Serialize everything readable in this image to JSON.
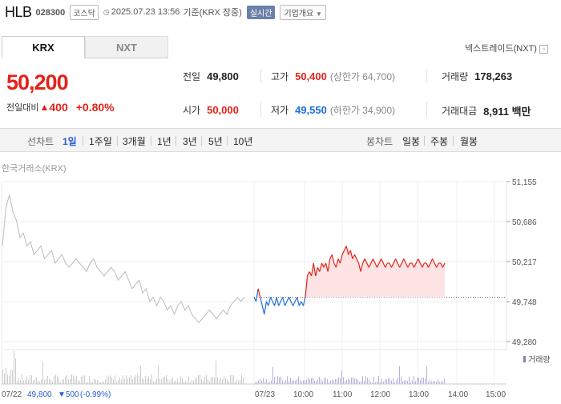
{
  "header": {
    "name": "HLB",
    "code": "028300",
    "market": "코스닥",
    "clock_icon": "clock-icon",
    "datetime": "2025.07.23 13:56",
    "basis": "기준(KRX 장중)",
    "realtime": "실시간",
    "company_overview": "기업개요"
  },
  "tabs": [
    {
      "label": "KRX",
      "active": true
    },
    {
      "label": "NXT",
      "active": false
    }
  ],
  "nextrade_link": "넥스트레이드(NXT)",
  "quote": {
    "price": "50,200",
    "change_label": "전일대비",
    "change_amount": "400",
    "change_percent": "+0.80%",
    "prev_close_label": "전일",
    "prev_close": "49,800",
    "high_label": "고가",
    "high": "50,400",
    "upper_limit": "(상한가 64,700)",
    "volume_label": "거래량",
    "volume": "178,263",
    "open_label": "시가",
    "open": "50,000",
    "low_label": "저가",
    "low": "49,550",
    "lower_limit": "(하한가 34,900)",
    "turnover_label": "거래대금",
    "turnover": "8,911 백만"
  },
  "toolbar": {
    "line_label": "선차트",
    "periods": [
      "1일",
      "1주일",
      "3개월",
      "1년",
      "3년",
      "5년",
      "10년"
    ],
    "candle_label": "봉차트",
    "candles": [
      "일봉",
      "주봉",
      "월봉"
    ]
  },
  "chart_source": "한국거래소(KRX)",
  "colors": {
    "up": "#e2231a",
    "down": "#1e6fd9",
    "prev": "#bbbbbb",
    "fill": "#fde3e3"
  },
  "chart_data": {
    "type": "line",
    "yticks": [
      "51,155",
      "50,686",
      "50,217",
      "49,748",
      "49,280"
    ],
    "ylim": [
      49280,
      51155
    ],
    "xticks": [
      "07/22",
      "07/23",
      "10:00",
      "11:00",
      "12:00",
      "13:00",
      "14:00",
      "15:00"
    ],
    "base_price": 49800,
    "volume_legend": "거래량",
    "footer": {
      "date": "07/22",
      "close": "49,800",
      "change": "500",
      "change_percent": "(-0.99%)"
    },
    "prev_day_series": [
      50400,
      50850,
      51000,
      50800,
      50700,
      50500,
      50550,
      50400,
      50450,
      50300,
      50350,
      50400,
      50250,
      50300,
      50350,
      50200,
      50250,
      50300,
      50200,
      50150,
      50200,
      50250,
      50200,
      50150,
      50100,
      50200,
      50250,
      50150,
      50100,
      50050,
      50100,
      50150,
      50100,
      50000,
      50050,
      50100,
      50000,
      49900,
      49950,
      50000,
      49850,
      49900,
      49750,
      49800,
      49700,
      49800,
      49750,
      49650,
      49700,
      49600,
      49700,
      49750,
      49650,
      49700,
      49600,
      49550,
      49500,
      49550,
      49600,
      49650,
      49600,
      49550,
      49600,
      49650,
      49600,
      49700,
      49750,
      49800,
      49750,
      49800
    ],
    "today_series": [
      49800,
      49750,
      49900,
      49800,
      49700,
      49600,
      49750,
      49700,
      49800,
      49750,
      49700,
      49800,
      49700,
      49750,
      49800,
      49700,
      49750,
      49800,
      49750,
      49700,
      49750,
      49800,
      49700,
      49750,
      49700,
      49800,
      50050,
      50100,
      50050,
      50200,
      50050,
      50150,
      50100,
      50200,
      50150,
      50200,
      50100,
      50250,
      50300,
      50200,
      50150,
      50250,
      50200,
      50300,
      50350,
      50400,
      50300,
      50350,
      50250,
      50300,
      50250,
      50200,
      50100,
      50200,
      50250,
      50200,
      50150,
      50200,
      50250,
      50200,
      50150,
      50200,
      50250,
      50200,
      50150,
      50200,
      50200,
      50150,
      50200,
      50250,
      50200,
      50150,
      50200,
      50250,
      50200,
      50150,
      50200,
      50200,
      50150,
      50200,
      50250,
      50200,
      50150,
      50200,
      50200,
      50150,
      50200,
      50250,
      50200,
      50150,
      50200,
      50200,
      50150,
      50200
    ]
  }
}
